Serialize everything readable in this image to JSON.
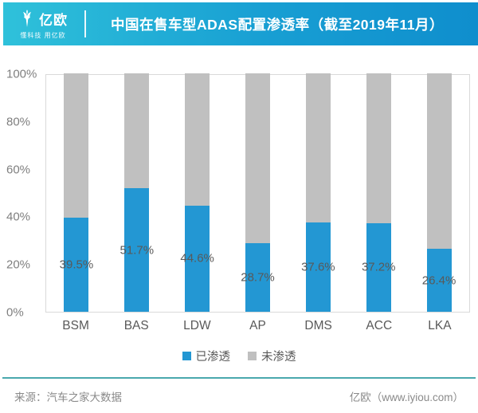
{
  "header": {
    "logo_text": "亿欧",
    "logo_tagline": "懂科技 用亿欧",
    "title": "中国在售车型ADAS配置渗透率（截至2019年11月）"
  },
  "chart_data": {
    "type": "bar",
    "stacked": true,
    "title": "中国在售车型ADAS配置渗透率（截至2019年11月）",
    "categories": [
      "BSM",
      "BAS",
      "LDW",
      "AP",
      "DMS",
      "ACC",
      "LKA"
    ],
    "series": [
      {
        "name": "已渗透",
        "color": "#2397d3",
        "values": [
          39.5,
          51.7,
          44.6,
          28.7,
          37.6,
          37.2,
          26.4
        ]
      },
      {
        "name": "未渗透",
        "color": "#c0c0c0",
        "values": [
          60.5,
          48.3,
          55.4,
          71.3,
          62.4,
          62.8,
          73.6
        ]
      }
    ],
    "data_labels": [
      "39.5%",
      "51.7%",
      "44.6%",
      "28.7%",
      "37.6%",
      "37.2%",
      "26.4%"
    ],
    "y_ticks": [
      "100%",
      "80%",
      "60%",
      "40%",
      "20%",
      "0%"
    ],
    "ylim": [
      0,
      100
    ],
    "xlabel": "",
    "ylabel": "",
    "grid": false,
    "legend_position": "bottom"
  },
  "legend": {
    "items": [
      {
        "label": "已渗透",
        "color": "#2397d3"
      },
      {
        "label": "未渗透",
        "color": "#c0c0c0"
      }
    ]
  },
  "footer": {
    "source": "来源：汽车之家大数据",
    "brand": "亿欧（www.iyiou.com）"
  },
  "colors": {
    "banner_gradient_left": "#2fc1da",
    "banner_gradient_right": "#0f8ecd",
    "bar_penetrated": "#2397d3",
    "bar_not_penetrated": "#c0c0c0",
    "axis_text": "#7f7f7f",
    "label_text": "#595959",
    "footer_line": "#4aa8ae",
    "footer_text": "#8a8a8a"
  }
}
